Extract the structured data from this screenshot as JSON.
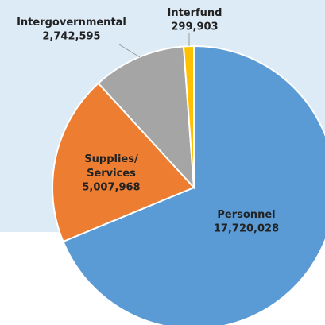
{
  "chart_data": {
    "type": "pie",
    "categories": [
      "Personnel",
      "Supplies/ Services",
      "Intergovernmental",
      "Interfund"
    ],
    "values": [
      17720028,
      5007968,
      2742595,
      299903
    ],
    "value_labels": [
      "17,720,028",
      "5,007,968",
      "2,742,595",
      "299,903"
    ],
    "colors": [
      "#5b9bd5",
      "#ed7d31",
      "#a5a5a5",
      "#ffc000"
    ]
  }
}
